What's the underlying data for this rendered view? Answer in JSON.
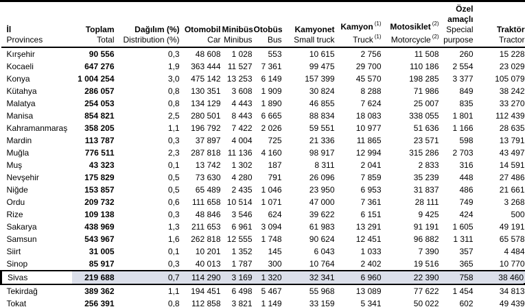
{
  "table": {
    "columns": [
      {
        "tr": "İl",
        "en": "Provinces"
      },
      {
        "tr": "Toplam",
        "en": "Total"
      },
      {
        "tr": "Dağılım (%)",
        "en": "Distribution (%)"
      },
      {
        "tr": "Otomobil",
        "en": "Car"
      },
      {
        "tr": "Minibüs",
        "en": "Minibus"
      },
      {
        "tr": "Otobüs",
        "en": "Bus"
      },
      {
        "tr": "Kamyonet",
        "en": "Small truck"
      },
      {
        "tr": "Kamyon",
        "en": "Truck",
        "sup": "(1)"
      },
      {
        "tr": "Motosiklet",
        "en": "Motorcycle",
        "sup": "(2)"
      },
      {
        "tr_line1": "Özel",
        "tr_line2": "amaçlı",
        "en_line1": "Special",
        "en_line2": "purpose"
      },
      {
        "tr": "Traktör",
        "en": "Tractor"
      }
    ],
    "rows": [
      {
        "province": "Kırşehir",
        "values": [
          "90 556",
          "0,3",
          "48 608",
          "1 028",
          "553",
          "10 615",
          "2 756",
          "11 508",
          "260",
          "15 228"
        ],
        "highlighted": false
      },
      {
        "province": "Kocaeli",
        "values": [
          "647 276",
          "1,9",
          "363 444",
          "11 527",
          "7 361",
          "99 475",
          "29 700",
          "110 186",
          "2 554",
          "23 029"
        ],
        "highlighted": false
      },
      {
        "province": "Konya",
        "values": [
          "1 004 254",
          "3,0",
          "475 142",
          "13 253",
          "6 149",
          "157 399",
          "45 570",
          "198 285",
          "3 377",
          "105 079"
        ],
        "highlighted": false
      },
      {
        "province": "Kütahya",
        "values": [
          "286 057",
          "0,8",
          "130 351",
          "3 608",
          "1 909",
          "30 824",
          "8 288",
          "71 986",
          "849",
          "38 242"
        ],
        "highlighted": false
      },
      {
        "province": "Malatya",
        "values": [
          "254 053",
          "0,8",
          "134 129",
          "4 443",
          "1 890",
          "46 855",
          "7 624",
          "25 007",
          "835",
          "33 270"
        ],
        "highlighted": false
      },
      {
        "province": "Manisa",
        "values": [
          "854 821",
          "2,5",
          "280 501",
          "8 443",
          "6 665",
          "88 834",
          "18 083",
          "338 055",
          "1 801",
          "112 439"
        ],
        "highlighted": false
      },
      {
        "province": "Kahramanmaraş",
        "values": [
          "358 205",
          "1,1",
          "196 792",
          "7 422",
          "2 026",
          "59 551",
          "10 977",
          "51 636",
          "1 166",
          "28 635"
        ],
        "highlighted": false
      },
      {
        "province": "Mardin",
        "values": [
          "113 787",
          "0,3",
          "37 897",
          "4 004",
          "725",
          "21 336",
          "11 865",
          "23 571",
          "598",
          "13 791"
        ],
        "highlighted": false
      },
      {
        "province": "Muğla",
        "values": [
          "776 511",
          "2,3",
          "287 818",
          "11 136",
          "4 160",
          "98 917",
          "12 994",
          "315 286",
          "2 703",
          "43 497"
        ],
        "highlighted": false
      },
      {
        "province": "Muş",
        "values": [
          "43 323",
          "0,1",
          "13 742",
          "1 302",
          "187",
          "8 311",
          "2 041",
          "2 833",
          "316",
          "14 591"
        ],
        "highlighted": false
      },
      {
        "province": "Nevşehir",
        "values": [
          "175 829",
          "0,5",
          "73 630",
          "4 280",
          "791",
          "26 096",
          "7 859",
          "35 239",
          "448",
          "27 486"
        ],
        "highlighted": false
      },
      {
        "province": "Niğde",
        "values": [
          "153 857",
          "0,5",
          "65 489",
          "2 435",
          "1 046",
          "23 950",
          "6 953",
          "31 837",
          "486",
          "21 661"
        ],
        "highlighted": false
      },
      {
        "province": "Ordu",
        "values": [
          "209 732",
          "0,6",
          "111 658",
          "10 514",
          "1 071",
          "47 000",
          "7 361",
          "28 111",
          "749",
          "3 268"
        ],
        "highlighted": false
      },
      {
        "province": "Rize",
        "values": [
          "109 138",
          "0,3",
          "48 846",
          "3 546",
          "624",
          "39 622",
          "6 151",
          "9 425",
          "424",
          "500"
        ],
        "highlighted": false
      },
      {
        "province": "Sakarya",
        "values": [
          "438 969",
          "1,3",
          "211 653",
          "6 961",
          "3 094",
          "61 983",
          "13 291",
          "91 191",
          "1 605",
          "49 191"
        ],
        "highlighted": false
      },
      {
        "province": "Samsun",
        "values": [
          "543 967",
          "1,6",
          "262 818",
          "12 555",
          "1 748",
          "90 624",
          "12 451",
          "96 882",
          "1 311",
          "65 578"
        ],
        "highlighted": false
      },
      {
        "province": "Siirt",
        "values": [
          "31 005",
          "0,1",
          "10 201",
          "1 352",
          "145",
          "6 043",
          "1 033",
          "7 390",
          "357",
          "4 484"
        ],
        "highlighted": false
      },
      {
        "province": "Sinop",
        "values": [
          "85 917",
          "0,3",
          "40 013",
          "1 787",
          "300",
          "10 764",
          "2 402",
          "19 516",
          "365",
          "10 770"
        ],
        "highlighted": false
      },
      {
        "province": "Sivas",
        "values": [
          "219 688",
          "0,7",
          "114 290",
          "3 169",
          "1 320",
          "32 341",
          "6 960",
          "22 390",
          "758",
          "38 460"
        ],
        "highlighted": true
      },
      {
        "province": "Tekirdağ",
        "values": [
          "389 362",
          "1,1",
          "194 451",
          "6 498",
          "5 467",
          "55 968",
          "13 089",
          "77 622",
          "1 454",
          "34 813"
        ],
        "highlighted": false
      },
      {
        "province": "Tokat",
        "values": [
          "256 391",
          "0,8",
          "112 858",
          "3 821",
          "1 149",
          "33 159",
          "5 341",
          "50 022",
          "602",
          "49 439"
        ],
        "highlighted": false
      }
    ]
  },
  "style": {
    "highlight_fill": "#dbdfea",
    "highlight_border": "#000000",
    "active_cell_background": "#ffffff",
    "rule_color": "#000000"
  }
}
